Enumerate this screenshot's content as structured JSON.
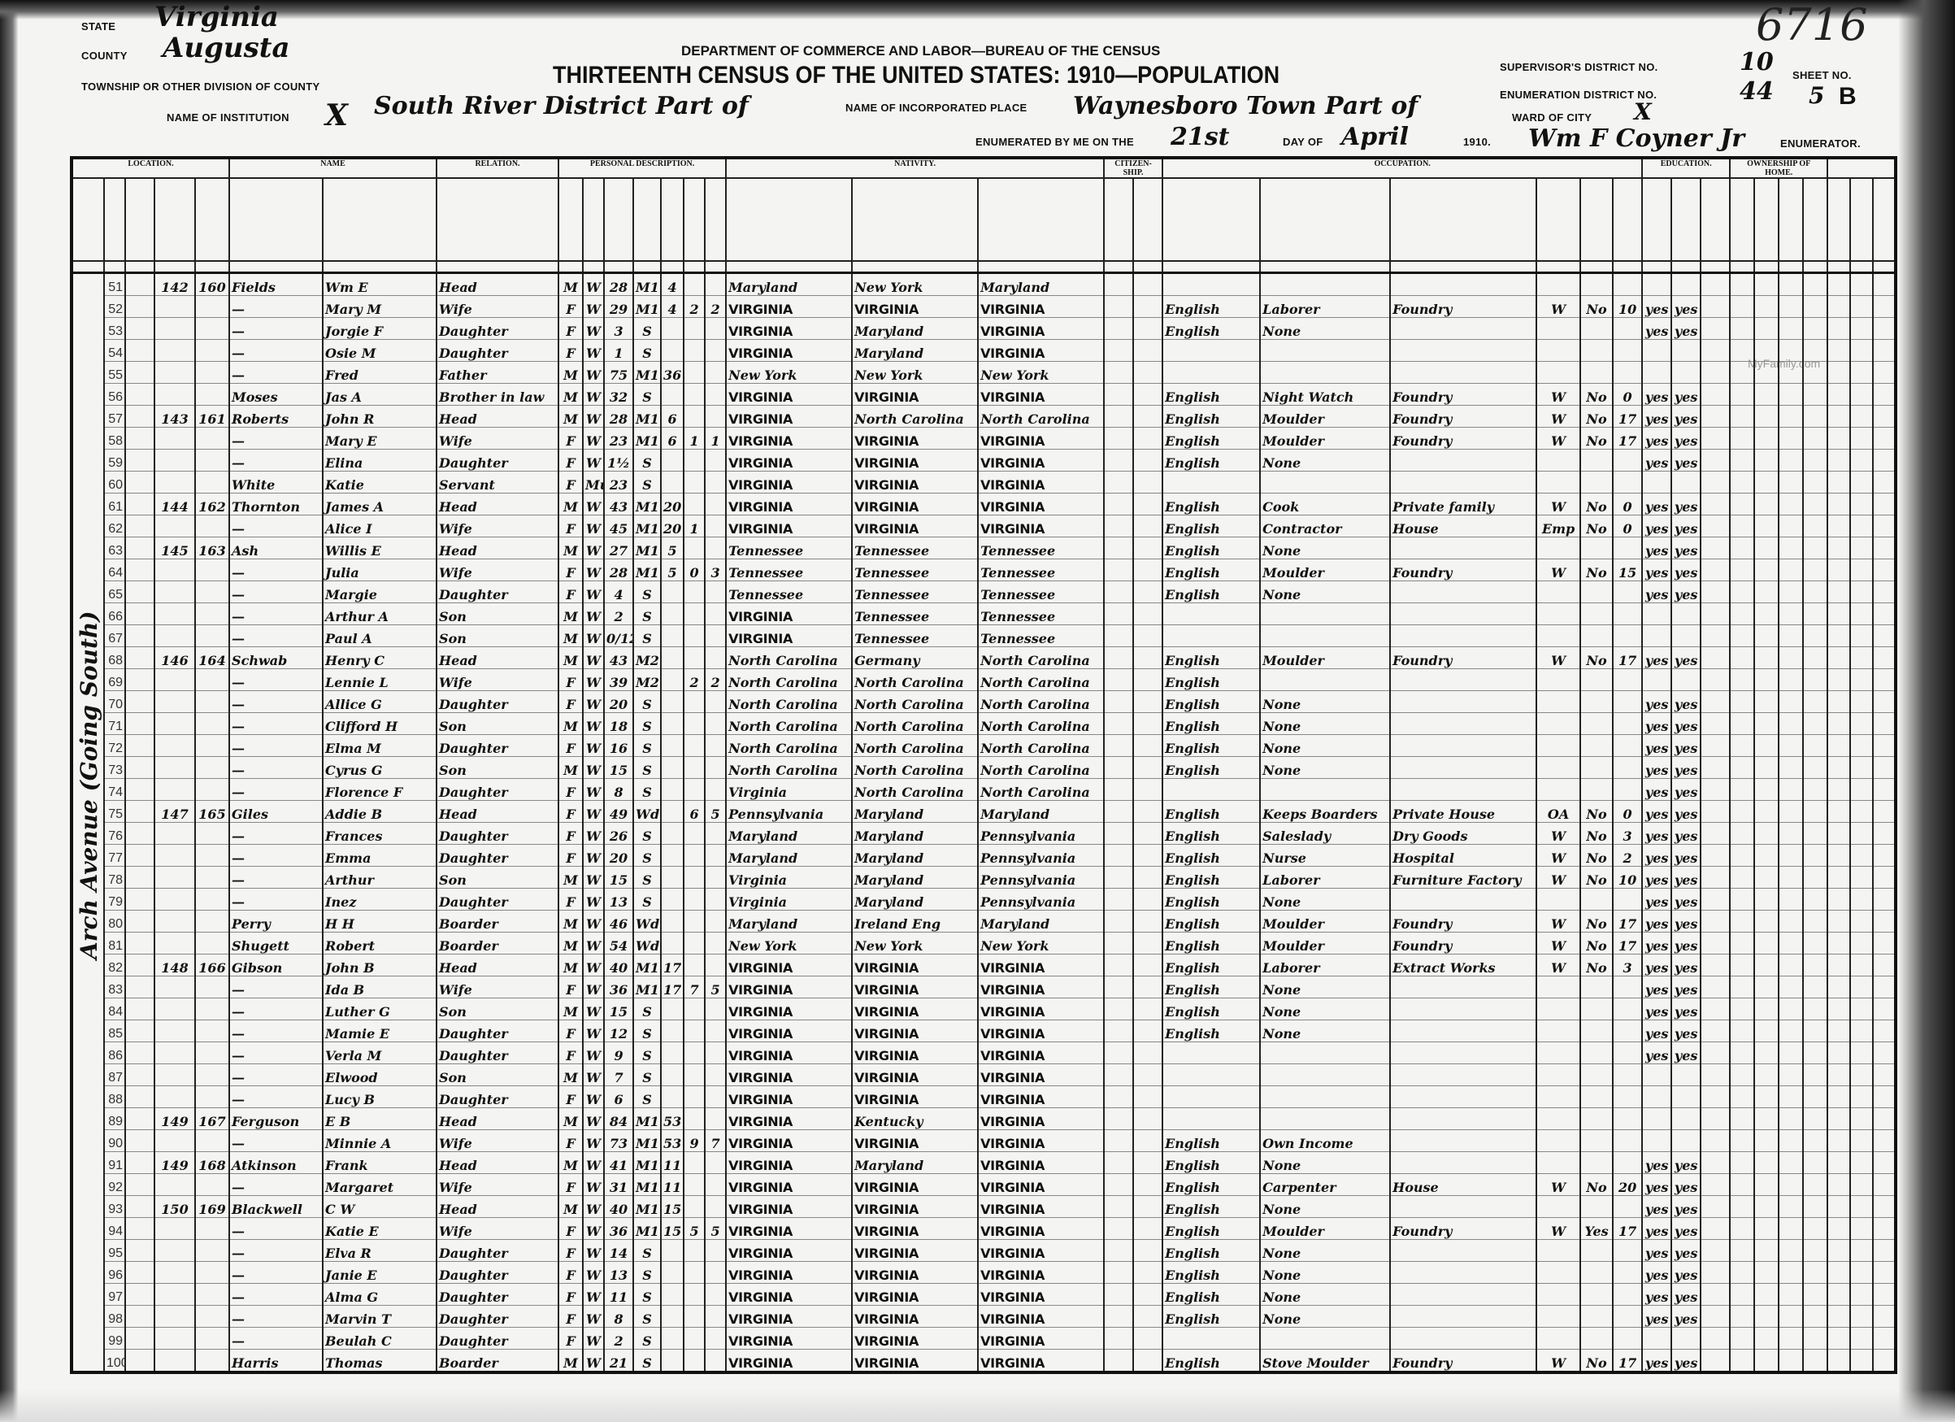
{
  "header": {
    "state_label": "State",
    "state": "Virginia",
    "county_label": "County",
    "county": "Augusta",
    "township_label": "Township or other division of county",
    "township": "South River District Part of",
    "institution_label": "Name of institution",
    "institution": "X",
    "department": "DEPARTMENT OF COMMERCE AND LABOR—BUREAU OF THE CENSUS",
    "title": "THIRTEENTH CENSUS OF THE UNITED STATES: 1910—POPULATION",
    "place_label": "Name of incorporated place",
    "place": "Waynesboro Town Part of",
    "enumerated_label": "Enumerated by me on the",
    "day": "21st",
    "day_of_label": "day of",
    "month": "April",
    "year": "1910.",
    "enumerator": "Wm F Coyner Jr",
    "enumerator_label": "Enumerator.",
    "supervisor_label": "Supervisor's District No.",
    "supervisor": "10",
    "ed_label": "Enumeration District No.",
    "ed": "44",
    "ward_label": "Ward of city",
    "ward": "X",
    "sheet_label": "Sheet No.",
    "sheet": "5",
    "sheet_side": "B",
    "stamp_number": "6716",
    "watermark": "MyFamily.com"
  },
  "street_note": "Arch Avenue (Going South)",
  "columns": {
    "location": "LOCATION.",
    "name": "NAME",
    "relation": "RELATION.",
    "personal": "PERSONAL DESCRIPTION.",
    "nativity": "NATIVITY.",
    "citizenship": "CITIZEN­SHIP.",
    "occupation": "OCCUPATION.",
    "education": "EDUCATION.",
    "ownership": "OWNERSHIP OF HOME."
  },
  "rows": [
    [
      "51",
      "142",
      "160",
      "Fields",
      "Wm E",
      "Head",
      "M",
      "W",
      "28",
      "M1",
      "4",
      "",
      "",
      "Maryland",
      "New York",
      "Maryland",
      "",
      "",
      "",
      "",
      "",
      "",
      "",
      ""
    ],
    [
      "52",
      "",
      "",
      "—",
      "Mary M",
      "Wife",
      "F",
      "W",
      "29",
      "M1",
      "4",
      "2",
      "2",
      "VIRGINIA",
      "VIRGINIA",
      "VIRGINIA",
      "English",
      "Laborer",
      "Foundry",
      "W",
      "No",
      "10",
      "yes",
      "yes"
    ],
    [
      "53",
      "",
      "",
      "—",
      "Jorgie F",
      "Daughter",
      "F",
      "W",
      "3",
      "S",
      "",
      "",
      "",
      "VIRGINIA",
      "Maryland",
      "VIRGINIA",
      "English",
      "None",
      "",
      "",
      "",
      "",
      "yes",
      "yes"
    ],
    [
      "54",
      "",
      "",
      "—",
      "Osie M",
      "Daughter",
      "F",
      "W",
      "1",
      "S",
      "",
      "",
      "",
      "VIRGINIA",
      "Maryland",
      "VIRGINIA",
      "",
      "",
      "",
      "",
      "",
      "",
      "",
      ""
    ],
    [
      "55",
      "",
      "",
      "—",
      "Fred",
      "Father",
      "M",
      "W",
      "75",
      "M1",
      "36",
      "",
      "",
      "New York",
      "New York",
      "New York",
      "",
      "",
      "",
      "",
      "",
      "",
      "",
      ""
    ],
    [
      "56",
      "",
      "",
      "Moses",
      "Jas A",
      "Brother in law",
      "M",
      "W",
      "32",
      "S",
      "",
      "",
      "",
      "VIRGINIA",
      "VIRGINIA",
      "VIRGINIA",
      "English",
      "Night Watch",
      "Foundry",
      "W",
      "No",
      "0",
      "yes",
      "yes"
    ],
    [
      "57",
      "143",
      "161",
      "Roberts",
      "John R",
      "Head",
      "M",
      "W",
      "28",
      "M1",
      "6",
      "",
      "",
      "VIRGINIA",
      "North Carolina",
      "North Carolina",
      "English",
      "Moulder",
      "Foundry",
      "W",
      "No",
      "17",
      "yes",
      "yes"
    ],
    [
      "58",
      "",
      "",
      "—",
      "Mary E",
      "Wife",
      "F",
      "W",
      "23",
      "M1",
      "6",
      "1",
      "1",
      "VIRGINIA",
      "VIRGINIA",
      "VIRGINIA",
      "English",
      "Moulder",
      "Foundry",
      "W",
      "No",
      "17",
      "yes",
      "yes"
    ],
    [
      "59",
      "",
      "",
      "—",
      "Elina",
      "Daughter",
      "F",
      "W",
      "1½",
      "S",
      "",
      "",
      "",
      "VIRGINIA",
      "VIRGINIA",
      "VIRGINIA",
      "English",
      "None",
      "",
      "",
      "",
      "",
      "yes",
      "yes"
    ],
    [
      "60",
      "",
      "",
      "White",
      "Katie",
      "Servant",
      "F",
      "Mu",
      "23",
      "S",
      "",
      "",
      "",
      "VIRGINIA",
      "VIRGINIA",
      "VIRGINIA",
      "",
      "",
      "",
      "",
      "",
      "",
      "",
      ""
    ],
    [
      "61",
      "144",
      "162",
      "Thornton",
      "James A",
      "Head",
      "M",
      "W",
      "43",
      "M1",
      "20",
      "",
      "",
      "VIRGINIA",
      "VIRGINIA",
      "VIRGINIA",
      "English",
      "Cook",
      "Private family",
      "W",
      "No",
      "0",
      "yes",
      "yes"
    ],
    [
      "62",
      "",
      "",
      "—",
      "Alice I",
      "Wife",
      "F",
      "W",
      "45",
      "M1",
      "20",
      "1",
      "",
      "VIRGINIA",
      "VIRGINIA",
      "VIRGINIA",
      "English",
      "Contractor",
      "House",
      "Emp",
      "No",
      "0",
      "yes",
      "yes"
    ],
    [
      "63",
      "145",
      "163",
      "Ash",
      "Willis E",
      "Head",
      "M",
      "W",
      "27",
      "M1",
      "5",
      "",
      "",
      "Tennessee",
      "Tennessee",
      "Tennessee",
      "English",
      "None",
      "",
      "",
      "",
      "",
      "yes",
      "yes"
    ],
    [
      "64",
      "",
      "",
      "—",
      "Julia",
      "Wife",
      "F",
      "W",
      "28",
      "M1",
      "5",
      "0",
      "3",
      "Tennessee",
      "Tennessee",
      "Tennessee",
      "English",
      "Moulder",
      "Foundry",
      "W",
      "No",
      "15",
      "yes",
      "yes"
    ],
    [
      "65",
      "",
      "",
      "—",
      "Margie",
      "Daughter",
      "F",
      "W",
      "4",
      "S",
      "",
      "",
      "",
      "Tennessee",
      "Tennessee",
      "Tennessee",
      "English",
      "None",
      "",
      "",
      "",
      "",
      "yes",
      "yes"
    ],
    [
      "66",
      "",
      "",
      "—",
      "Arthur A",
      "Son",
      "M",
      "W",
      "2",
      "S",
      "",
      "",
      "",
      "VIRGINIA",
      "Tennessee",
      "Tennessee",
      "",
      "",
      "",
      "",
      "",
      "",
      "",
      ""
    ],
    [
      "67",
      "",
      "",
      "—",
      "Paul A",
      "Son",
      "M",
      "W",
      "0/12",
      "S",
      "",
      "",
      "",
      "VIRGINIA",
      "Tennessee",
      "Tennessee",
      "",
      "",
      "",
      "",
      "",
      "",
      "",
      ""
    ],
    [
      "68",
      "146",
      "164",
      "Schwab",
      "Henry C",
      "Head",
      "M",
      "W",
      "43",
      "M2",
      "",
      "",
      "",
      "North Carolina",
      "Germany",
      "North Carolina",
      "English",
      "Moulder",
      "Foundry",
      "W",
      "No",
      "17",
      "yes",
      "yes"
    ],
    [
      "69",
      "",
      "",
      "—",
      "Lennie L",
      "Wife",
      "F",
      "W",
      "39",
      "M2",
      "",
      "2",
      "2",
      "North Carolina",
      "North Carolina",
      "North Carolina",
      "English",
      "",
      "",
      "",
      "",
      "",
      "",
      ""
    ],
    [
      "70",
      "",
      "",
      "—",
      "Allice G",
      "Daughter",
      "F",
      "W",
      "20",
      "S",
      "",
      "",
      "",
      "North Carolina",
      "North Carolina",
      "North Carolina",
      "English",
      "None",
      "",
      "",
      "",
      "",
      "yes",
      "yes"
    ],
    [
      "71",
      "",
      "",
      "—",
      "Clifford H",
      "Son",
      "M",
      "W",
      "18",
      "S",
      "",
      "",
      "",
      "North Carolina",
      "North Carolina",
      "North Carolina",
      "English",
      "None",
      "",
      "",
      "",
      "",
      "yes",
      "yes"
    ],
    [
      "72",
      "",
      "",
      "—",
      "Elma M",
      "Daughter",
      "F",
      "W",
      "16",
      "S",
      "",
      "",
      "",
      "North Carolina",
      "North Carolina",
      "North Carolina",
      "English",
      "None",
      "",
      "",
      "",
      "",
      "yes",
      "yes"
    ],
    [
      "73",
      "",
      "",
      "—",
      "Cyrus G",
      "Son",
      "M",
      "W",
      "15",
      "S",
      "",
      "",
      "",
      "North Carolina",
      "North Carolina",
      "North Carolina",
      "English",
      "None",
      "",
      "",
      "",
      "",
      "yes",
      "yes"
    ],
    [
      "74",
      "",
      "",
      "—",
      "Florence F",
      "Daughter",
      "F",
      "W",
      "8",
      "S",
      "",
      "",
      "",
      "Virginia",
      "North Carolina",
      "North Carolina",
      "",
      "",
      "",
      "",
      "",
      "",
      "yes",
      "yes"
    ],
    [
      "75",
      "147",
      "165",
      "Giles",
      "Addie B",
      "Head",
      "F",
      "W",
      "49",
      "Wd",
      "",
      "6",
      "5",
      "Pennsylvania",
      "Maryland",
      "Maryland",
      "English",
      "Keeps Boarders",
      "Private House",
      "OA",
      "No",
      "0",
      "yes",
      "yes"
    ],
    [
      "76",
      "",
      "",
      "—",
      "Frances",
      "Daughter",
      "F",
      "W",
      "26",
      "S",
      "",
      "",
      "",
      "Maryland",
      "Maryland",
      "Pennsylvania",
      "English",
      "Saleslady",
      "Dry Goods",
      "W",
      "No",
      "3",
      "yes",
      "yes"
    ],
    [
      "77",
      "",
      "",
      "—",
      "Emma",
      "Daughter",
      "F",
      "W",
      "20",
      "S",
      "",
      "",
      "",
      "Maryland",
      "Maryland",
      "Pennsylvania",
      "English",
      "Nurse",
      "Hospital",
      "W",
      "No",
      "2",
      "yes",
      "yes"
    ],
    [
      "78",
      "",
      "",
      "—",
      "Arthur",
      "Son",
      "M",
      "W",
      "15",
      "S",
      "",
      "",
      "",
      "Virginia",
      "Maryland",
      "Pennsylvania",
      "English",
      "Laborer",
      "Furniture Factory",
      "W",
      "No",
      "10",
      "yes",
      "yes"
    ],
    [
      "79",
      "",
      "",
      "—",
      "Inez",
      "Daughter",
      "F",
      "W",
      "13",
      "S",
      "",
      "",
      "",
      "Virginia",
      "Maryland",
      "Pennsylvania",
      "English",
      "None",
      "",
      "",
      "",
      "",
      "yes",
      "yes"
    ],
    [
      "80",
      "",
      "",
      "Perry",
      "H H",
      "Boarder",
      "M",
      "W",
      "46",
      "Wd",
      "",
      "",
      "",
      "Maryland",
      "Ireland Eng",
      "Maryland",
      "English",
      "Moulder",
      "Foundry",
      "W",
      "No",
      "17",
      "yes",
      "yes"
    ],
    [
      "81",
      "",
      "",
      "Shugett",
      "Robert",
      "Boarder",
      "M",
      "W",
      "54",
      "Wd",
      "",
      "",
      "",
      "New York",
      "New York",
      "New York",
      "English",
      "Moulder",
      "Foundry",
      "W",
      "No",
      "17",
      "yes",
      "yes"
    ],
    [
      "82",
      "148",
      "166",
      "Gibson",
      "John B",
      "Head",
      "M",
      "W",
      "40",
      "M1",
      "17",
      "",
      "",
      "VIRGINIA",
      "VIRGINIA",
      "VIRGINIA",
      "English",
      "Laborer",
      "Extract Works",
      "W",
      "No",
      "3",
      "yes",
      "yes"
    ],
    [
      "83",
      "",
      "",
      "—",
      "Ida B",
      "Wife",
      "F",
      "W",
      "36",
      "M1",
      "17",
      "7",
      "5",
      "VIRGINIA",
      "VIRGINIA",
      "VIRGINIA",
      "English",
      "None",
      "",
      "",
      "",
      "",
      "yes",
      "yes"
    ],
    [
      "84",
      "",
      "",
      "—",
      "Luther G",
      "Son",
      "M",
      "W",
      "15",
      "S",
      "",
      "",
      "",
      "VIRGINIA",
      "VIRGINIA",
      "VIRGINIA",
      "English",
      "None",
      "",
      "",
      "",
      "",
      "yes",
      "yes"
    ],
    [
      "85",
      "",
      "",
      "—",
      "Mamie E",
      "Daughter",
      "F",
      "W",
      "12",
      "S",
      "",
      "",
      "",
      "VIRGINIA",
      "VIRGINIA",
      "VIRGINIA",
      "English",
      "None",
      "",
      "",
      "",
      "",
      "yes",
      "yes"
    ],
    [
      "86",
      "",
      "",
      "—",
      "Verla M",
      "Daughter",
      "F",
      "W",
      "9",
      "S",
      "",
      "",
      "",
      "VIRGINIA",
      "VIRGINIA",
      "VIRGINIA",
      "",
      "",
      "",
      "",
      "",
      "",
      "yes",
      "yes"
    ],
    [
      "87",
      "",
      "",
      "—",
      "Elwood",
      "Son",
      "M",
      "W",
      "7",
      "S",
      "",
      "",
      "",
      "VIRGINIA",
      "VIRGINIA",
      "VIRGINIA",
      "",
      "",
      "",
      "",
      "",
      "",
      "",
      ""
    ],
    [
      "88",
      "",
      "",
      "—",
      "Lucy B",
      "Daughter",
      "F",
      "W",
      "6",
      "S",
      "",
      "",
      "",
      "VIRGINIA",
      "VIRGINIA",
      "VIRGINIA",
      "",
      "",
      "",
      "",
      "",
      "",
      "",
      ""
    ],
    [
      "89",
      "149",
      "167",
      "Ferguson",
      "E B",
      "Head",
      "M",
      "W",
      "84",
      "M1",
      "53",
      "",
      "",
      "VIRGINIA",
      "Kentucky",
      "VIRGINIA",
      "",
      "",
      "",
      "",
      "",
      "",
      "",
      ""
    ],
    [
      "90",
      "",
      "",
      "—",
      "Minnie A",
      "Wife",
      "F",
      "W",
      "73",
      "M1",
      "53",
      "9",
      "7",
      "VIRGINIA",
      "VIRGINIA",
      "VIRGINIA",
      "English",
      "Own Income",
      "",
      "",
      "",
      "",
      "",
      ""
    ],
    [
      "91",
      "149",
      "168",
      "Atkinson",
      "Frank",
      "Head",
      "M",
      "W",
      "41",
      "M1",
      "11",
      "",
      "",
      "VIRGINIA",
      "Maryland",
      "VIRGINIA",
      "English",
      "None",
      "",
      "",
      "",
      "",
      "yes",
      "yes"
    ],
    [
      "92",
      "",
      "",
      "—",
      "Margaret",
      "Wife",
      "F",
      "W",
      "31",
      "M1",
      "11",
      "",
      "",
      "VIRGINIA",
      "VIRGINIA",
      "VIRGINIA",
      "English",
      "Carpenter",
      "House",
      "W",
      "No",
      "20",
      "yes",
      "yes"
    ],
    [
      "93",
      "150",
      "169",
      "Blackwell",
      "C W",
      "Head",
      "M",
      "W",
      "40",
      "M1",
      "15",
      "",
      "",
      "VIRGINIA",
      "VIRGINIA",
      "VIRGINIA",
      "English",
      "None",
      "",
      "",
      "",
      "",
      "yes",
      "yes"
    ],
    [
      "94",
      "",
      "",
      "—",
      "Katie E",
      "Wife",
      "F",
      "W",
      "36",
      "M1",
      "15",
      "5",
      "5",
      "VIRGINIA",
      "VIRGINIA",
      "VIRGINIA",
      "English",
      "Moulder",
      "Foundry",
      "W",
      "Yes",
      "17",
      "yes",
      "yes"
    ],
    [
      "95",
      "",
      "",
      "—",
      "Elva R",
      "Daughter",
      "F",
      "W",
      "14",
      "S",
      "",
      "",
      "",
      "VIRGINIA",
      "VIRGINIA",
      "VIRGINIA",
      "English",
      "None",
      "",
      "",
      "",
      "",
      "yes",
      "yes"
    ],
    [
      "96",
      "",
      "",
      "—",
      "Janie E",
      "Daughter",
      "F",
      "W",
      "13",
      "S",
      "",
      "",
      "",
      "VIRGINIA",
      "VIRGINIA",
      "VIRGINIA",
      "English",
      "None",
      "",
      "",
      "",
      "",
      "yes",
      "yes"
    ],
    [
      "97",
      "",
      "",
      "—",
      "Alma G",
      "Daughter",
      "F",
      "W",
      "11",
      "S",
      "",
      "",
      "",
      "VIRGINIA",
      "VIRGINIA",
      "VIRGINIA",
      "English",
      "None",
      "",
      "",
      "",
      "",
      "yes",
      "yes"
    ],
    [
      "98",
      "",
      "",
      "—",
      "Marvin T",
      "Daughter",
      "F",
      "W",
      "8",
      "S",
      "",
      "",
      "",
      "VIRGINIA",
      "VIRGINIA",
      "VIRGINIA",
      "English",
      "None",
      "",
      "",
      "",
      "",
      "yes",
      "yes"
    ],
    [
      "99",
      "",
      "",
      "—",
      "Beulah C",
      "Daughter",
      "F",
      "W",
      "2",
      "S",
      "",
      "",
      "",
      "VIRGINIA",
      "VIRGINIA",
      "VIRGINIA",
      "",
      "",
      "",
      "",
      "",
      "",
      "",
      ""
    ],
    [
      "100",
      "",
      "",
      "Harris",
      "Thomas",
      "Boarder",
      "M",
      "W",
      "21",
      "S",
      "",
      "",
      "",
      "VIRGINIA",
      "VIRGINIA",
      "VIRGINIA",
      "English",
      "Stove Moulder",
      "Foundry",
      "W",
      "No",
      "17",
      "yes",
      "yes"
    ]
  ]
}
